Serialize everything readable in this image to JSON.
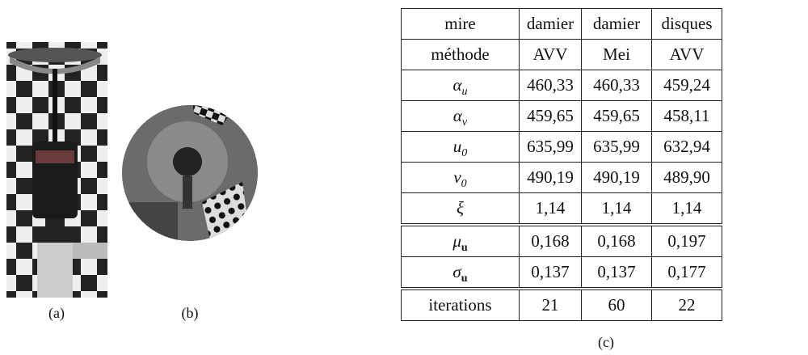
{
  "captions": {
    "a": "(a)",
    "b": "(b)",
    "c": "(c)"
  },
  "table": {
    "rows": [
      [
        "mire",
        "damier",
        "damier",
        "disques"
      ],
      [
        "méthode",
        "AVV",
        "Mei",
        "AVV"
      ],
      [
        {
          "base": "α",
          "sub": "u"
        },
        "460,33",
        "460,33",
        "459,24"
      ],
      [
        {
          "base": "α",
          "sub": "v"
        },
        "459,65",
        "459,65",
        "458,11"
      ],
      [
        {
          "base": "u",
          "sub": "0"
        },
        "635,99",
        "635,99",
        "632,94"
      ],
      [
        {
          "base": "v",
          "sub": "0"
        },
        "490,19",
        "490,19",
        "489,90"
      ],
      [
        {
          "base": "ξ"
        },
        "1,14",
        "1,14",
        "1,14"
      ],
      [
        {
          "base": "μ",
          "sub": "u"
        },
        "0,168",
        "0,168",
        "0,197"
      ],
      [
        {
          "base": "σ",
          "sub": "u"
        },
        "0,137",
        "0,137",
        "0,177"
      ],
      [
        "iterations",
        "21",
        "60",
        "22"
      ]
    ]
  }
}
